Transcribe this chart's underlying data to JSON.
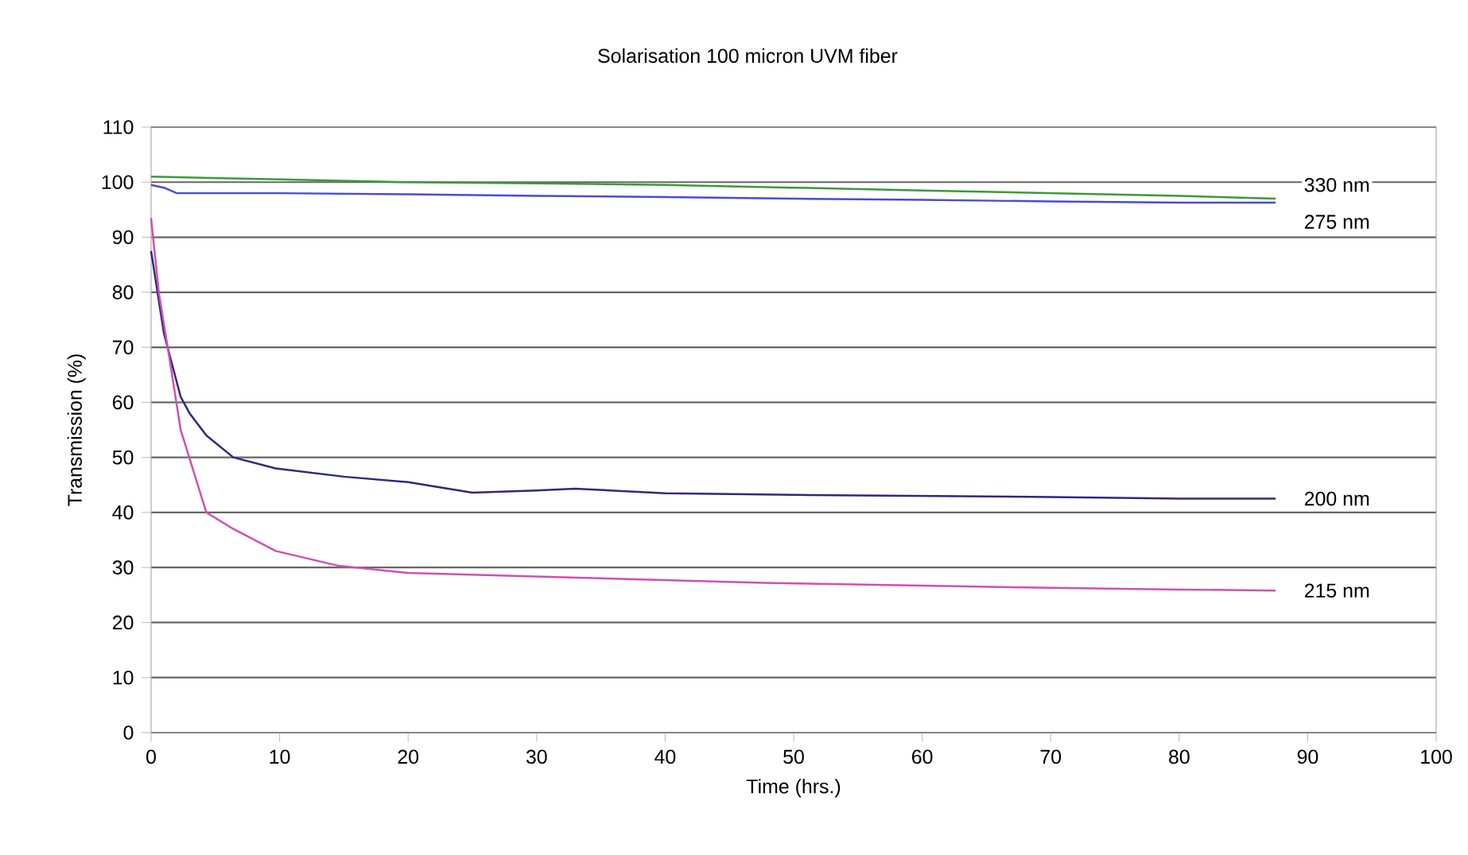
{
  "chart_data": {
    "type": "line",
    "title": "Solarisation 100 micron UVM fiber",
    "xlabel": "Time (hrs.)",
    "ylabel": "Transmission (%)",
    "xlim": [
      0,
      100
    ],
    "ylim": [
      0,
      110
    ],
    "xticks": [
      0,
      10,
      20,
      30,
      40,
      50,
      60,
      70,
      80,
      90,
      100
    ],
    "yticks": [
      0,
      10,
      20,
      30,
      40,
      50,
      60,
      70,
      80,
      90,
      100,
      110
    ],
    "grid": "y",
    "legend": false,
    "marker": "none",
    "line_style": "solid",
    "series": [
      {
        "name": "330 nm",
        "color": "#3a9a3a",
        "x": [
          0,
          10,
          20,
          30,
          40,
          50,
          60,
          70,
          80,
          87.5
        ],
        "values": [
          101,
          100.5,
          100,
          99.8,
          99.5,
          99,
          98.5,
          98,
          97.5,
          97
        ]
      },
      {
        "name": "275 nm",
        "color": "#4a4ad8",
        "x": [
          0,
          1,
          2,
          10,
          20,
          30,
          40,
          50,
          60,
          70,
          80,
          87.5
        ],
        "values": [
          99.5,
          99,
          98,
          98,
          97.8,
          97.5,
          97.3,
          97,
          96.8,
          96.5,
          96.3,
          96.3
        ]
      },
      {
        "name": "200 nm",
        "color": "#2a2a80",
        "x": [
          0,
          1,
          2.3,
          3,
          4.3,
          6.4,
          9.7,
          15,
          20,
          25,
          30,
          33,
          40,
          50,
          60,
          70,
          80,
          87.5
        ],
        "values": [
          87.5,
          72.5,
          61,
          58,
          54,
          50,
          48,
          46.5,
          45.5,
          43.6,
          44,
          44.3,
          43.5,
          43.2,
          43,
          42.8,
          42.5,
          42.5
        ]
      },
      {
        "name": "215 nm",
        "color": "#d050b0",
        "x": [
          0,
          0.6,
          1.45,
          2.3,
          4.3,
          6.4,
          9.7,
          14.6,
          20,
          31,
          47.6,
          60,
          70,
          80,
          87.5
        ],
        "values": [
          93.5,
          80,
          67.7,
          55,
          40,
          37,
          33,
          30.3,
          29,
          28.3,
          27.2,
          26.7,
          26.3,
          26,
          25.8
        ]
      }
    ]
  }
}
